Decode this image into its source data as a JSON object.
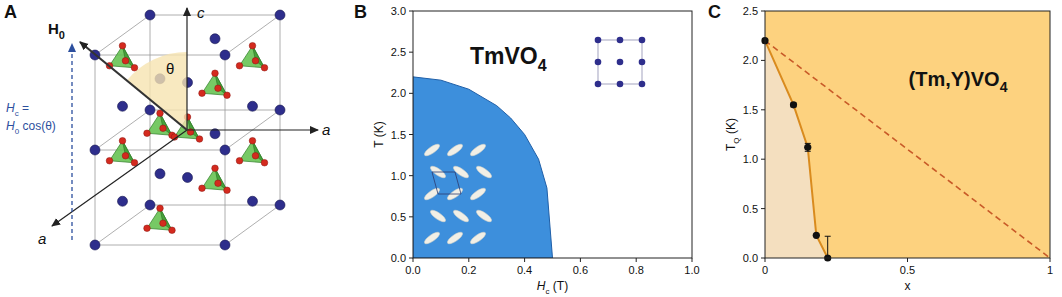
{
  "diagram": {
    "panel_label": "A",
    "axis_labels": [
      "c",
      "a",
      "a"
    ],
    "angle_label": "θ",
    "field_label": [
      {
        "text": "H"
      },
      {
        "text": "0",
        "sub": true
      }
    ],
    "component_label": [
      [
        {
          "text": "H"
        },
        {
          "text": "c",
          "sub": true
        },
        {
          "text": " ="
        }
      ],
      [
        {
          "text": "H"
        },
        {
          "text": "0",
          "sub": true
        },
        {
          "text": " cos(θ)"
        }
      ]
    ]
  },
  "chart_data": [
    {
      "type": "area",
      "panel_label": "B",
      "title": [
        {
          "text": "TmVO"
        },
        {
          "text": "4",
          "sub": true
        }
      ],
      "xlabel": [
        {
          "text": "H"
        },
        {
          "text": "c",
          "sub": true
        },
        {
          "text": " (T)"
        }
      ],
      "ylabel": [
        {
          "text": "T (K)"
        }
      ],
      "x": [
        0,
        0.1,
        0.2,
        0.3,
        0.35,
        0.4,
        0.45,
        0.48,
        0.5
      ],
      "values": [
        2.2,
        2.16,
        2.05,
        1.85,
        1.7,
        1.5,
        1.2,
        0.85,
        0
      ],
      "color": "#3d8fdc",
      "xlim": [
        0,
        1
      ],
      "ylim": [
        0,
        3
      ],
      "xticks": [
        {
          "value": 0,
          "label": "0.0"
        },
        0.2,
        0.4,
        0.6,
        0.8,
        {
          "value": 1,
          "label": "1.0"
        }
      ],
      "yticks": [
        {
          "value": 0,
          "label": "0.0"
        },
        0.5,
        {
          "value": 1,
          "label": "1.0"
        },
        1.5,
        {
          "value": 2,
          "label": "2.0"
        },
        2.5,
        {
          "value": 3,
          "label": "3.0"
        }
      ],
      "grid": false
    },
    {
      "type": "scatter",
      "panel_label": "C",
      "title": [
        {
          "text": "(Tm,Y)VO"
        },
        {
          "text": "4",
          "sub": true
        }
      ],
      "xlabel": [
        {
          "text": "x"
        }
      ],
      "ylabel": [
        {
          "text": "T"
        },
        {
          "text": "Q",
          "sub": true
        },
        {
          "text": " (K)"
        }
      ],
      "series": [
        {
          "type": "line",
          "marker": "circle",
          "color": "#d98b1e",
          "x": [
            0,
            0.1,
            0.15,
            0.18,
            0.22
          ],
          "values": [
            2.2,
            1.55,
            1.12,
            0.23,
            0
          ],
          "errors": [
            0,
            0.02,
            0.04,
            0,
            0.22
          ]
        },
        {
          "type": "line",
          "line_style": "dashed",
          "color": "#c85a28",
          "x": [
            0,
            1
          ],
          "values": [
            2.2,
            0
          ]
        }
      ],
      "xlim": [
        0,
        1
      ],
      "ylim": [
        0,
        2.5
      ],
      "xticks": [
        0,
        0.5,
        1
      ],
      "yticks": [
        {
          "value": 0,
          "label": "0.0"
        },
        0.5,
        {
          "value": 1,
          "label": "1.0"
        },
        1.5,
        {
          "value": 2,
          "label": "2.0"
        },
        2.5
      ],
      "grid": false
    }
  ]
}
